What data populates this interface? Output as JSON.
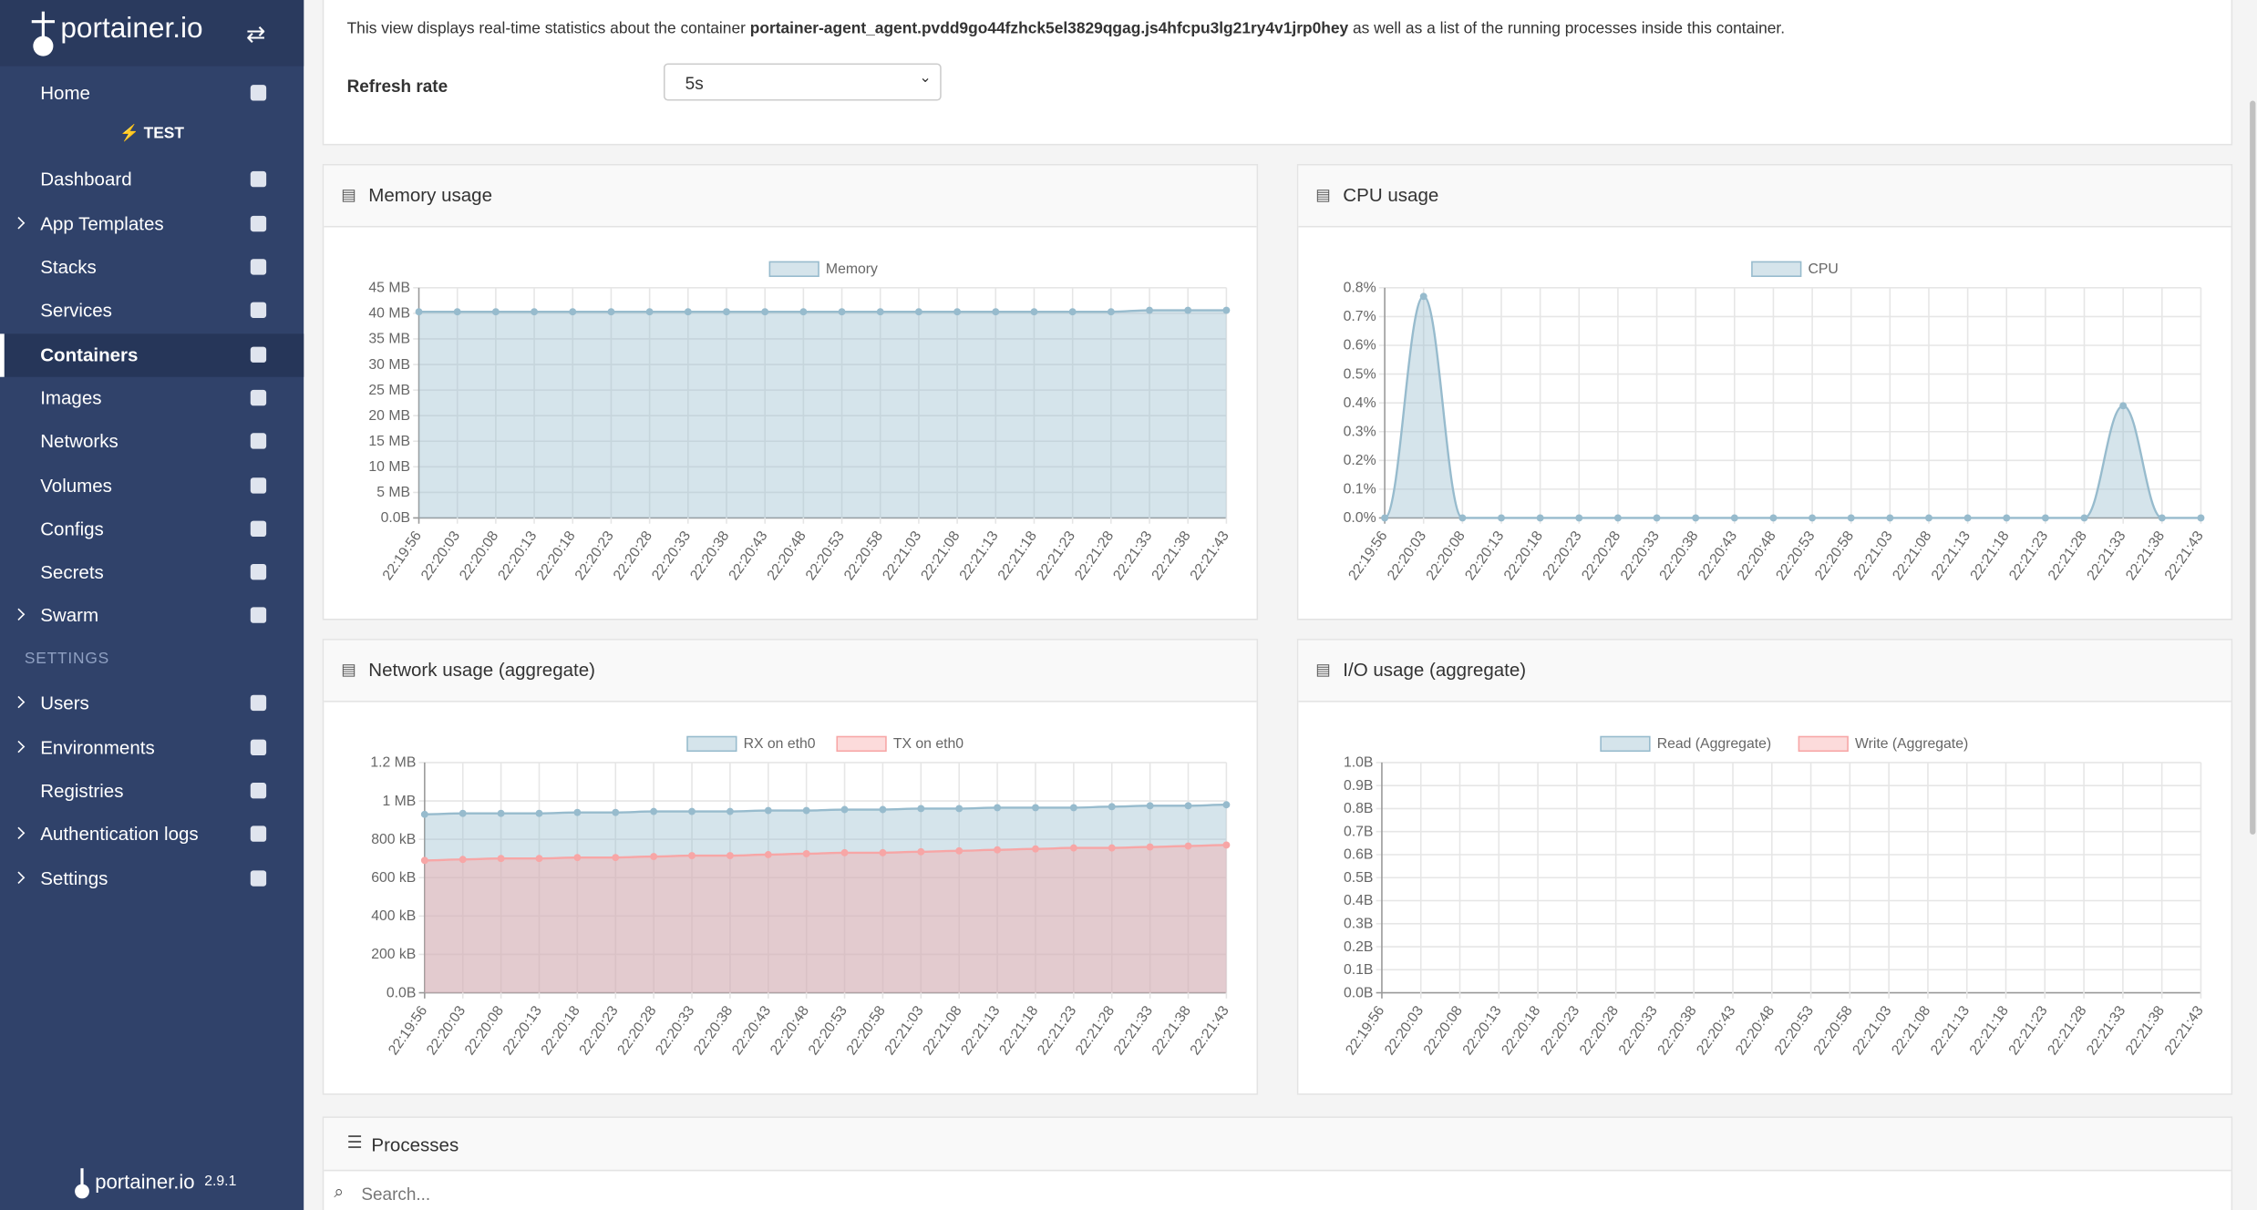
{
  "sidebar": {
    "logo": "portainer.io",
    "environment": "TEST",
    "settings_heading": "SETTINGS",
    "items": [
      {
        "label": "Home"
      },
      {
        "label": "Dashboard"
      },
      {
        "label": "App Templates",
        "chevron": true
      },
      {
        "label": "Stacks"
      },
      {
        "label": "Services"
      },
      {
        "label": "Containers",
        "active": true
      },
      {
        "label": "Images"
      },
      {
        "label": "Networks"
      },
      {
        "label": "Volumes"
      },
      {
        "label": "Configs"
      },
      {
        "label": "Secrets"
      },
      {
        "label": "Swarm",
        "chevron": true
      },
      {
        "label": "Users",
        "chevron": true
      },
      {
        "label": "Environments",
        "chevron": true
      },
      {
        "label": "Registries"
      },
      {
        "label": "Authentication logs",
        "chevron": true
      },
      {
        "label": "Settings",
        "chevron": true
      }
    ],
    "footer": {
      "logo": "portainer.io",
      "version": "2.9.1"
    }
  },
  "header": {
    "description_before": "This view displays real-time statistics about the container",
    "container": "portainer-agent_agent.pvdd9go44fzhck5el3829qgag.js4hfcpu3lg21ry4v1jrp0hey",
    "description_after": "as well as a list of the running processes inside this container."
  },
  "refresh": {
    "label": "Refresh rate",
    "value": "5s"
  },
  "chart_data": [
    {
      "type": "line",
      "title": "Memory usage",
      "categories": [
        "22:19:56",
        "22:20:03",
        "22:20:08",
        "22:20:13",
        "22:20:18",
        "22:20:23",
        "22:20:28",
        "22:20:33",
        "22:20:38",
        "22:20:43",
        "22:20:48",
        "22:20:53",
        "22:20:58",
        "22:21:03",
        "22:21:08",
        "22:21:13",
        "22:21:18",
        "22:21:23",
        "22:21:28",
        "22:21:33",
        "22:21:38",
        "22:21:43"
      ],
      "series": [
        {
          "name": "Memory",
          "color": "#97bbcd",
          "values": [
            40.3,
            40.3,
            40.3,
            40.3,
            40.3,
            40.3,
            40.3,
            40.3,
            40.3,
            40.3,
            40.3,
            40.3,
            40.3,
            40.3,
            40.3,
            40.3,
            40.3,
            40.3,
            40.3,
            40.6,
            40.6,
            40.6
          ]
        }
      ],
      "ylim": [
        0,
        45
      ],
      "yticks": [
        {
          "value": 0,
          "label": "0.0B"
        },
        {
          "value": 5,
          "label": "5 MB"
        },
        {
          "value": 10,
          "label": "10 MB"
        },
        {
          "value": 15,
          "label": "15 MB"
        },
        {
          "value": 20,
          "label": "20 MB"
        },
        {
          "value": 25,
          "label": "25 MB"
        },
        {
          "value": 30,
          "label": "30 MB"
        },
        {
          "value": 35,
          "label": "35 MB"
        },
        {
          "value": 40,
          "label": "40 MB"
        },
        {
          "value": 45,
          "label": "45 MB"
        }
      ],
      "grid": true
    },
    {
      "type": "line",
      "title": "CPU usage",
      "categories": [
        "22:19:56",
        "22:20:03",
        "22:20:08",
        "22:20:13",
        "22:20:18",
        "22:20:23",
        "22:20:28",
        "22:20:33",
        "22:20:38",
        "22:20:43",
        "22:20:48",
        "22:20:53",
        "22:20:58",
        "22:21:03",
        "22:21:08",
        "22:21:13",
        "22:21:18",
        "22:21:23",
        "22:21:28",
        "22:21:33",
        "22:21:38",
        "22:21:43"
      ],
      "series": [
        {
          "name": "CPU",
          "color": "#97bbcd",
          "values": [
            0,
            0.77,
            0,
            0,
            0,
            0,
            0,
            0,
            0,
            0,
            0,
            0,
            0,
            0,
            0,
            0,
            0,
            0,
            0,
            0.39,
            0,
            0
          ]
        }
      ],
      "ylim": [
        0,
        0.8
      ],
      "yticks": [
        {
          "value": 0,
          "label": "0.0%"
        },
        {
          "value": 0.1,
          "label": "0.1%"
        },
        {
          "value": 0.2,
          "label": "0.2%"
        },
        {
          "value": 0.3,
          "label": "0.3%"
        },
        {
          "value": 0.4,
          "label": "0.4%"
        },
        {
          "value": 0.5,
          "label": "0.5%"
        },
        {
          "value": 0.6,
          "label": "0.6%"
        },
        {
          "value": 0.7,
          "label": "0.7%"
        },
        {
          "value": 0.8,
          "label": "0.8%"
        }
      ],
      "grid": true
    },
    {
      "type": "line",
      "title": "Network usage (aggregate)",
      "categories": [
        "22:19:56",
        "22:20:03",
        "22:20:08",
        "22:20:13",
        "22:20:18",
        "22:20:23",
        "22:20:28",
        "22:20:33",
        "22:20:38",
        "22:20:43",
        "22:20:48",
        "22:20:53",
        "22:20:58",
        "22:21:03",
        "22:21:08",
        "22:21:13",
        "22:21:18",
        "22:21:23",
        "22:21:28",
        "22:21:33",
        "22:21:38",
        "22:21:43"
      ],
      "series": [
        {
          "name": "RX on eth0",
          "color": "#97bbcd",
          "values": [
            930,
            935,
            935,
            935,
            940,
            940,
            945,
            945,
            945,
            950,
            950,
            955,
            955,
            960,
            960,
            965,
            965,
            965,
            970,
            975,
            975,
            980
          ]
        },
        {
          "name": "TX on eth0",
          "color": "#f7a6a6",
          "values": [
            690,
            695,
            700,
            700,
            705,
            705,
            710,
            715,
            715,
            720,
            725,
            730,
            730,
            735,
            740,
            745,
            750,
            755,
            755,
            760,
            765,
            770
          ]
        }
      ],
      "ylim": [
        0,
        1200
      ],
      "yticks": [
        {
          "value": 0,
          "label": "0.0B"
        },
        {
          "value": 200,
          "label": "200 kB"
        },
        {
          "value": 400,
          "label": "400 kB"
        },
        {
          "value": 600,
          "label": "600 kB"
        },
        {
          "value": 800,
          "label": "800 kB"
        },
        {
          "value": 1000,
          "label": "1 MB"
        },
        {
          "value": 1200,
          "label": "1.2 MB"
        }
      ],
      "grid": true
    },
    {
      "type": "line",
      "title": "I/O usage (aggregate)",
      "categories": [
        "22:19:56",
        "22:20:03",
        "22:20:08",
        "22:20:13",
        "22:20:18",
        "22:20:23",
        "22:20:28",
        "22:20:33",
        "22:20:38",
        "22:20:43",
        "22:20:48",
        "22:20:53",
        "22:20:58",
        "22:21:03",
        "22:21:08",
        "22:21:13",
        "22:21:18",
        "22:21:23",
        "22:21:28",
        "22:21:33",
        "22:21:38",
        "22:21:43"
      ],
      "series": [
        {
          "name": "Read (Aggregate)",
          "color": "#97bbcd",
          "values": [
            null,
            null,
            null,
            null,
            null,
            null,
            null,
            null,
            null,
            null,
            null,
            null,
            null,
            null,
            null,
            null,
            null,
            null,
            null,
            null,
            null,
            null
          ]
        },
        {
          "name": "Write (Aggregate)",
          "color": "#f7a6a6",
          "values": [
            null,
            null,
            null,
            null,
            null,
            null,
            null,
            null,
            null,
            null,
            null,
            null,
            null,
            null,
            null,
            null,
            null,
            null,
            null,
            null,
            null,
            null
          ]
        }
      ],
      "ylim": [
        0,
        1
      ],
      "yticks": [
        {
          "value": 0,
          "label": "0.0B"
        },
        {
          "value": 0.1,
          "label": "0.1B"
        },
        {
          "value": 0.2,
          "label": "0.2B"
        },
        {
          "value": 0.3,
          "label": "0.3B"
        },
        {
          "value": 0.4,
          "label": "0.4B"
        },
        {
          "value": 0.5,
          "label": "0.5B"
        },
        {
          "value": 0.6,
          "label": "0.6B"
        },
        {
          "value": 0.7,
          "label": "0.7B"
        },
        {
          "value": 0.8,
          "label": "0.8B"
        },
        {
          "value": 0.9,
          "label": "0.9B"
        },
        {
          "value": 1,
          "label": "1.0B"
        }
      ],
      "grid": true
    }
  ],
  "processes": {
    "title": "Processes",
    "search_placeholder": "Search..."
  }
}
